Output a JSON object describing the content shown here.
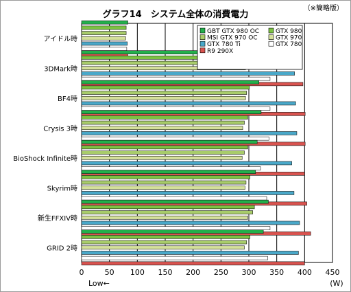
{
  "chart_data": {
    "type": "bar",
    "orientation": "horizontal",
    "title": "グラフ14　システム全体の消費電力",
    "note": "（※簡略版）",
    "xlabel": "(W)",
    "low_label": "Low←",
    "xlim": [
      0,
      450
    ],
    "xticks": [
      0,
      50,
      100,
      150,
      200,
      250,
      300,
      350,
      400,
      450
    ],
    "grid": "vertical",
    "legend_position": "top-right",
    "categories": [
      "アイドル時",
      "3DMark時",
      "BF4時",
      "Crysis 3時",
      "BioShock Infinite時",
      "Skyrim時",
      "新生FFXIV時",
      "GRID 2時"
    ],
    "series": [
      {
        "name": "GBT GTX 980 OC",
        "color": "#22b04b",
        "values": [
          83,
          324,
          318,
          322,
          315,
          312,
          335,
          326
        ]
      },
      {
        "name": "GTX 980",
        "color": "#7cc242",
        "values": [
          80,
          303,
          301,
          298,
          298,
          302,
          310,
          302
        ]
      },
      {
        "name": "MSI GTX 970 OC",
        "color": "#a8cc6a",
        "values": [
          80,
          297,
          296,
          292,
          292,
          295,
          307,
          296
        ]
      },
      {
        "name": "GTX 970",
        "color": "#d4e09b",
        "values": [
          79,
          294,
          294,
          289,
          288,
          293,
          298,
          292
        ]
      },
      {
        "name": "GTX 780 Ti",
        "color": "#49a8c9",
        "values": [
          82,
          382,
          384,
          386,
          377,
          381,
          391,
          389
        ]
      },
      {
        "name": "GTX 780",
        "color": "#ffffff",
        "values": [
          81,
          338,
          338,
          336,
          321,
          332,
          338,
          334
        ]
      },
      {
        "name": "R9 290X",
        "color": "#d9534f",
        "values": [
          83,
          397,
          401,
          401,
          400,
          404,
          411,
          400
        ]
      }
    ]
  }
}
